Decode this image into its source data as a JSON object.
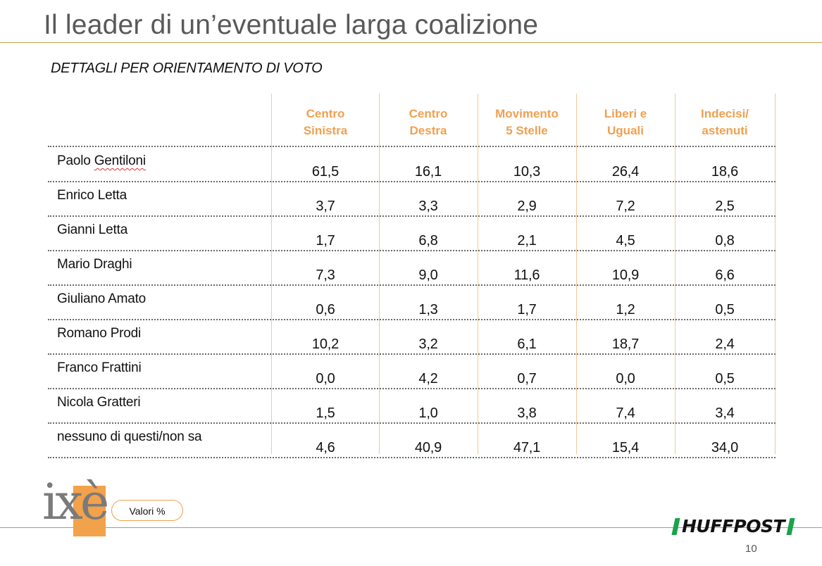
{
  "slide": {
    "title": "Il leader di un’eventuale larga coalizione",
    "subtitle": "DETTAGLI PER ORIENTAMENTO DI VOTO",
    "page_number": "10"
  },
  "table": {
    "columns": [
      {
        "line1": "Centro",
        "line2": "Sinistra"
      },
      {
        "line1": "Centro",
        "line2": "Destra"
      },
      {
        "line1": "Movimento",
        "line2": "5 Stelle"
      },
      {
        "line1": "Liberi e",
        "line2": "Uguali"
      },
      {
        "line1": "Indecisi/",
        "line2": "astenuti"
      }
    ],
    "rows": [
      {
        "name": "Paolo Gentiloni",
        "values": [
          "61,5",
          "16,1",
          "10,3",
          "26,4",
          "18,6"
        ]
      },
      {
        "name": "Enrico Letta",
        "values": [
          "3,7",
          "3,3",
          "2,9",
          "7,2",
          "2,5"
        ]
      },
      {
        "name": "Gianni Letta",
        "values": [
          "1,7",
          "6,8",
          "2,1",
          "4,5",
          "0,8"
        ]
      },
      {
        "name": "Mario Draghi",
        "values": [
          "7,3",
          "9,0",
          "11,6",
          "10,9",
          "6,6"
        ]
      },
      {
        "name": "Giuliano Amato",
        "values": [
          "0,6",
          "1,3",
          "1,7",
          "1,2",
          "0,5"
        ]
      },
      {
        "name": "Romano Prodi",
        "values": [
          "10,2",
          "3,2",
          "6,1",
          "18,7",
          "2,4"
        ]
      },
      {
        "name": "Franco Frattini",
        "values": [
          "0,0",
          "4,2",
          "0,7",
          "0,0",
          "0,5"
        ]
      },
      {
        "name": "Nicola Gratteri",
        "values": [
          "1,5",
          "1,0",
          "3,8",
          "7,4",
          "3,4"
        ]
      },
      {
        "name": "nessuno di questi/non sa",
        "values": [
          "4,6",
          "40,9",
          "47,1",
          "15,4",
          "34,0"
        ]
      }
    ]
  },
  "footer": {
    "badge": "Valori %",
    "logo_ixe": "ixè",
    "logo_huffpost": "HUFFPOST"
  },
  "colors": {
    "header_text": "#f0a050",
    "logo_orange": "#f2a24a",
    "huffpost_green": "#19a34a"
  }
}
